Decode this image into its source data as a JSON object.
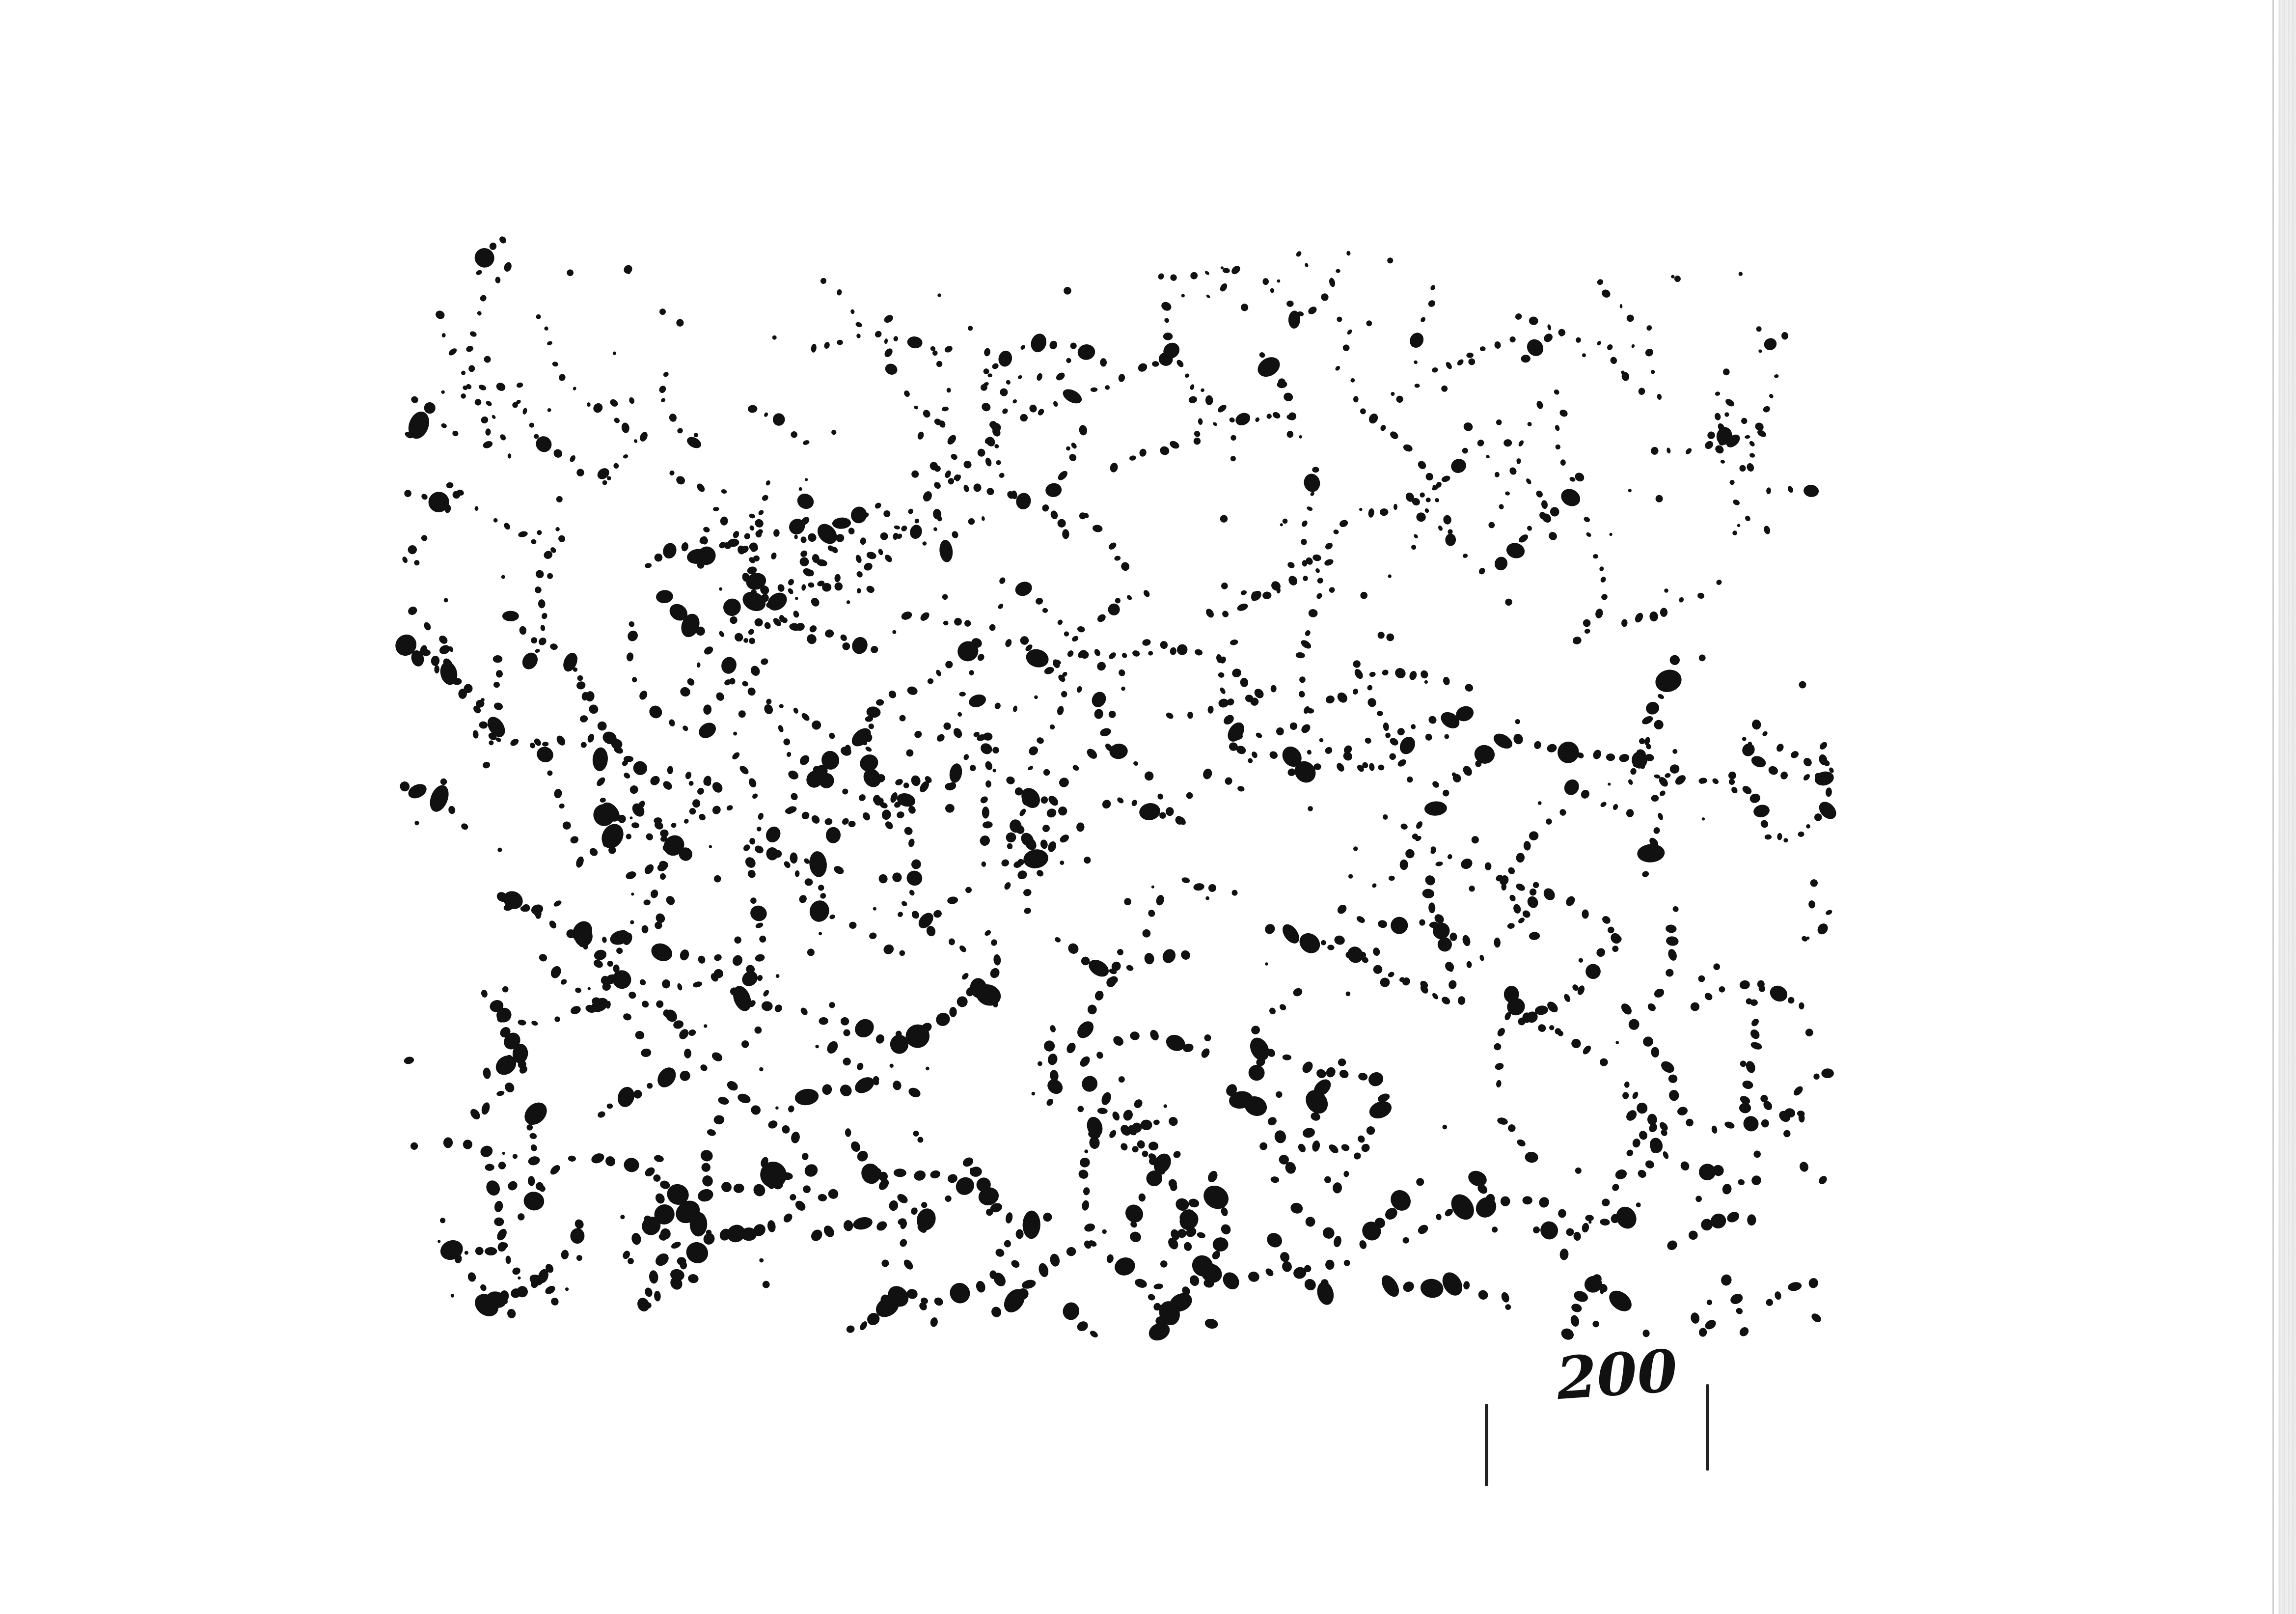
{
  "figure": {
    "dot_color": "#111111",
    "background_color": "#ffffff",
    "scale_bar": {
      "label": "200"
    }
  }
}
